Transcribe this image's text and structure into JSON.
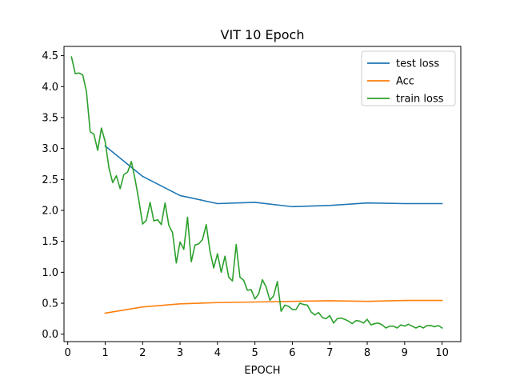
{
  "chart_data": {
    "type": "line",
    "title": "VIT 10 Epoch",
    "xlabel": "EPOCH",
    "ylabel": "",
    "xlim": [
      -0.1,
      10.5
    ],
    "ylim": [
      -0.12,
      4.65
    ],
    "xticks": [
      0,
      1,
      2,
      3,
      4,
      5,
      6,
      7,
      8,
      9,
      10
    ],
    "yticks": [
      0.0,
      0.5,
      1.0,
      1.5,
      2.0,
      2.5,
      3.0,
      3.5,
      4.0,
      4.5
    ],
    "xtick_labels": [
      "0",
      "1",
      "2",
      "3",
      "4",
      "5",
      "6",
      "7",
      "8",
      "9",
      "10"
    ],
    "ytick_labels": [
      "0.0",
      "0.5",
      "1.0",
      "1.5",
      "2.0",
      "2.5",
      "3.0",
      "3.5",
      "4.0",
      "4.5"
    ],
    "grid": false,
    "legend_position": "top-right",
    "series": [
      {
        "name": "test loss",
        "color": "#1f77b4",
        "x": [
          1,
          2,
          3,
          4,
          5,
          6,
          7,
          8,
          9,
          10
        ],
        "y": [
          3.04,
          2.55,
          2.24,
          2.11,
          2.13,
          2.06,
          2.08,
          2.12,
          2.11,
          2.11
        ]
      },
      {
        "name": "Acc",
        "color": "#ff7f0e",
        "x": [
          1,
          2,
          3,
          4,
          5,
          6,
          7,
          8,
          9,
          10
        ],
        "y": [
          0.34,
          0.44,
          0.49,
          0.51,
          0.52,
          0.53,
          0.54,
          0.53,
          0.545,
          0.545
        ]
      },
      {
        "name": "train loss",
        "color": "#2ca02c",
        "x": [
          0.1,
          0.2,
          0.3,
          0.4,
          0.5,
          0.6,
          0.7,
          0.8,
          0.9,
          1.0,
          1.1,
          1.2,
          1.3,
          1.4,
          1.5,
          1.6,
          1.7,
          1.8,
          1.9,
          2.0,
          2.1,
          2.2,
          2.3,
          2.4,
          2.5,
          2.6,
          2.7,
          2.8,
          2.9,
          3.0,
          3.1,
          3.2,
          3.3,
          3.4,
          3.5,
          3.6,
          3.7,
          3.8,
          3.9,
          4.0,
          4.1,
          4.2,
          4.3,
          4.4,
          4.5,
          4.6,
          4.7,
          4.8,
          4.9,
          5.0,
          5.1,
          5.2,
          5.3,
          5.4,
          5.5,
          5.6,
          5.7,
          5.8,
          5.9,
          6.0,
          6.1,
          6.2,
          6.3,
          6.4,
          6.5,
          6.6,
          6.7,
          6.8,
          6.9,
          7.0,
          7.1,
          7.2,
          7.3,
          7.4,
          7.5,
          7.6,
          7.7,
          7.8,
          7.9,
          8.0,
          8.1,
          8.2,
          8.3,
          8.4,
          8.5,
          8.6,
          8.7,
          8.8,
          8.9,
          9.0,
          9.1,
          9.2,
          9.3,
          9.4,
          9.5,
          9.6,
          9.7,
          9.8,
          9.9,
          10.0
        ],
        "y": [
          4.48,
          4.21,
          4.22,
          4.19,
          3.92,
          3.27,
          3.23,
          2.97,
          3.33,
          3.11,
          2.69,
          2.45,
          2.56,
          2.35,
          2.58,
          2.62,
          2.79,
          2.5,
          2.16,
          1.78,
          1.84,
          2.13,
          1.83,
          1.85,
          1.77,
          2.12,
          1.76,
          1.64,
          1.15,
          1.49,
          1.37,
          1.89,
          1.17,
          1.44,
          1.46,
          1.53,
          1.77,
          1.34,
          1.07,
          1.3,
          1.0,
          1.26,
          0.92,
          0.86,
          1.45,
          0.92,
          0.87,
          0.71,
          0.72,
          0.57,
          0.65,
          0.88,
          0.76,
          0.55,
          0.62,
          0.85,
          0.37,
          0.47,
          0.45,
          0.4,
          0.4,
          0.5,
          0.48,
          0.47,
          0.36,
          0.31,
          0.35,
          0.27,
          0.25,
          0.3,
          0.18,
          0.25,
          0.26,
          0.24,
          0.21,
          0.17,
          0.22,
          0.21,
          0.18,
          0.24,
          0.15,
          0.17,
          0.18,
          0.15,
          0.1,
          0.13,
          0.13,
          0.1,
          0.15,
          0.13,
          0.16,
          0.13,
          0.1,
          0.13,
          0.1,
          0.14,
          0.14,
          0.12,
          0.14,
          0.1
        ]
      }
    ]
  }
}
